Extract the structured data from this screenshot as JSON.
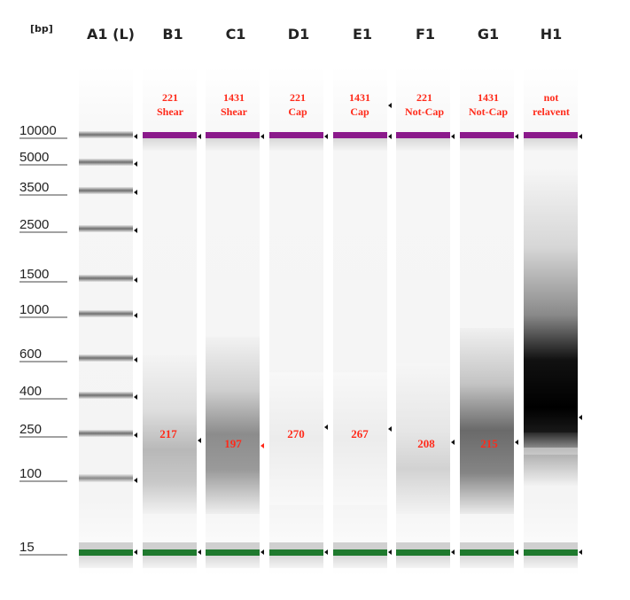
{
  "unit_label": "[bp]",
  "ladder_sizes": [
    "10000",
    "5000",
    "3500",
    "2500",
    "1500",
    "1000",
    "600",
    "400",
    "250",
    "100",
    "15"
  ],
  "lanes": [
    {
      "id": "A1 (L)",
      "annotation": [
        "",
        ""
      ],
      "peak": ""
    },
    {
      "id": "B1",
      "annotation": [
        "221",
        "Shear"
      ],
      "peak": "217"
    },
    {
      "id": "C1",
      "annotation": [
        "1431",
        "Shear"
      ],
      "peak": "197"
    },
    {
      "id": "D1",
      "annotation": [
        "221",
        "Cap"
      ],
      "peak": "270"
    },
    {
      "id": "E1",
      "annotation": [
        "1431",
        "Cap"
      ],
      "peak": "267"
    },
    {
      "id": "F1",
      "annotation": [
        "221",
        "Not-Cap"
      ],
      "peak": "208"
    },
    {
      "id": "G1",
      "annotation": [
        "1431",
        "Not-Cap"
      ],
      "peak": "215"
    },
    {
      "id": "H1",
      "annotation": [
        "not",
        "relavent"
      ],
      "peak": ""
    }
  ],
  "colors": {
    "upper_marker": "#8b1a8b",
    "lower_marker": "#1f7a2e",
    "annotation": "#ff2a1a"
  }
}
